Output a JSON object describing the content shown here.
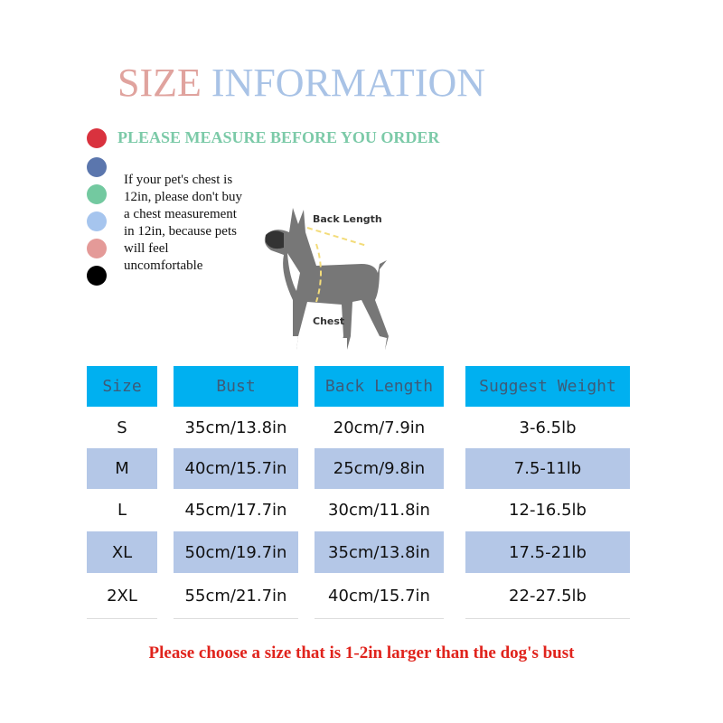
{
  "title": {
    "part1": "SIZE",
    "part2": "INFORMATION"
  },
  "measure_heading": "PLEASE MEASURE BEFORE YOU ORDER",
  "dots": [
    "#d9323e",
    "#5b76ad",
    "#73c9a0",
    "#a6c5ee",
    "#e49a98",
    "#000000"
  ],
  "note": "If your pet's chest is 12in, please don't buy a chest measurement in 12in, because pets will feel uncomfortable",
  "diagram": {
    "back_length_label": "Back Length",
    "chest_label": "Chest"
  },
  "table": {
    "headers": [
      "Size",
      "Bust",
      "Back Length",
      "Suggest Weight"
    ],
    "rows": [
      [
        "S",
        "35cm/13.8in",
        "20cm/7.9in",
        "3-6.5lb"
      ],
      [
        "M",
        "40cm/15.7in",
        "25cm/9.8in",
        "7.5-11lb"
      ],
      [
        "L",
        "45cm/17.7in",
        "30cm/11.8in",
        "12-16.5lb"
      ],
      [
        "XL",
        "50cm/19.7in",
        "35cm/13.8in",
        "17.5-21lb"
      ],
      [
        "2XL",
        "55cm/21.7in",
        "40cm/15.7in",
        "22-27.5lb"
      ]
    ],
    "header_color": "#00b0f0",
    "shade_color": "#b4c7e7"
  },
  "footer": "Please choose a size that is 1-2in larger than the dog's bust"
}
